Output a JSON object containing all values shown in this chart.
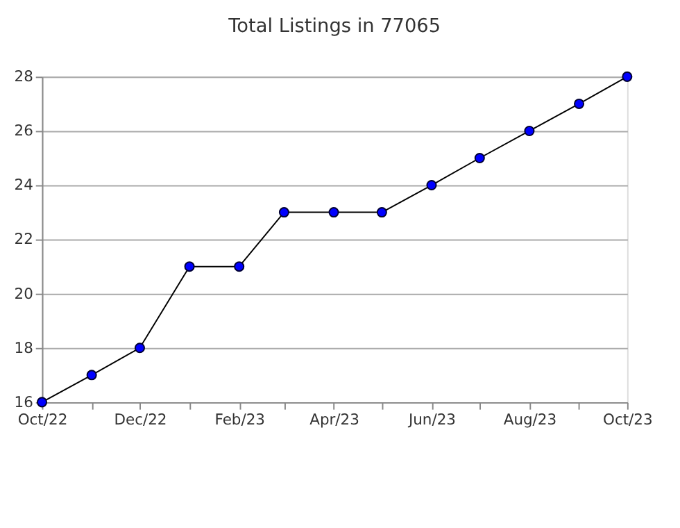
{
  "chart_data": {
    "type": "line",
    "title": "Total Listings in 77065",
    "x": [
      "2022-10",
      "2022-11",
      "2022-12",
      "2023-01",
      "2023-02",
      "2023-03",
      "2023-04",
      "2023-05",
      "2023-06",
      "2023-07",
      "2023-08",
      "2023-09",
      "2023-10"
    ],
    "series": [
      {
        "color": "#0000ff",
        "values": [
          16,
          17,
          18,
          21,
          21,
          23,
          23,
          23,
          24,
          25,
          26,
          27,
          28
        ]
      }
    ],
    "xlim": [
      "2022-10",
      "2023-10"
    ],
    "xticks": [
      {
        "value": "2022-10",
        "label": "Oct/22"
      },
      {
        "value": "2022-11",
        "label": null
      },
      {
        "value": "2022-12",
        "label": "Dec/22"
      },
      {
        "value": "2023-01",
        "label": null
      },
      {
        "value": "2023-02",
        "label": "Feb/23"
      },
      {
        "value": "2023-03",
        "label": null
      },
      {
        "value": "2023-04",
        "label": "Apr/23"
      },
      {
        "value": "2023-05",
        "label": null
      },
      {
        "value": "2023-06",
        "label": "Jun/23"
      },
      {
        "value": "2023-07",
        "label": null
      },
      {
        "value": "2023-08",
        "label": "Aug/23"
      },
      {
        "value": "2023-09",
        "label": null
      },
      {
        "value": "2023-10",
        "label": "Oct/23"
      }
    ],
    "ylim": [
      16,
      28
    ],
    "yticks": [
      16,
      18,
      20,
      22,
      24,
      26,
      28
    ],
    "grid": "y",
    "legend": false,
    "marker": "circle",
    "line_style": "solid"
  }
}
